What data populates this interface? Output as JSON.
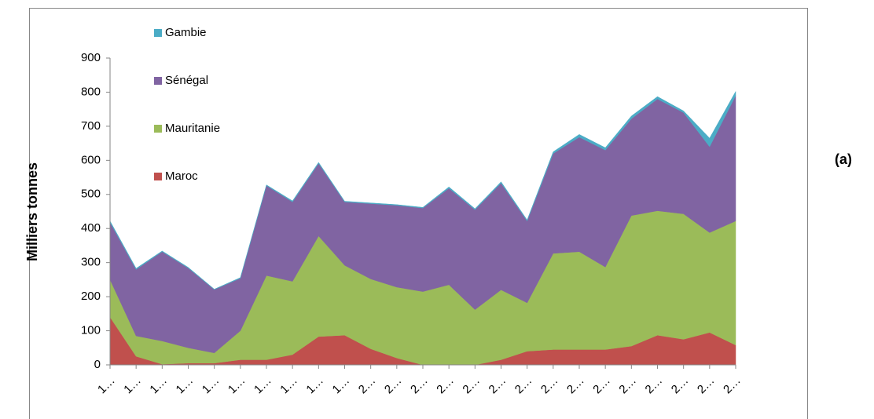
{
  "chart_data": {
    "type": "stacked-area",
    "y_label": "Milliers tonnes",
    "annotation": "(a)",
    "categories": [
      "1…",
      "1…",
      "1…",
      "1…",
      "1…",
      "1…",
      "1…",
      "1…",
      "1…",
      "1…",
      "2…",
      "2…",
      "2…",
      "2…",
      "2…",
      "2…",
      "2…",
      "2…",
      "2…",
      "2…",
      "2…",
      "2…",
      "2…",
      "2…",
      "2…"
    ],
    "series": [
      {
        "name": "Maroc",
        "color": "#c0504d",
        "values": [
          140,
          25,
          2,
          5,
          5,
          15,
          15,
          30,
          83,
          87,
          47,
          20,
          0,
          0,
          0,
          15,
          40,
          45,
          45,
          45,
          55,
          87,
          75,
          95,
          58
        ]
      },
      {
        "name": "Mauritanie",
        "color": "#9bbb59",
        "values": [
          110,
          60,
          68,
          45,
          30,
          85,
          247,
          215,
          295,
          205,
          205,
          208,
          215,
          235,
          162,
          205,
          142,
          282,
          287,
          242,
          383,
          365,
          368,
          293,
          364
        ]
      },
      {
        "name": "Sénégal",
        "color": "#8064a2",
        "values": [
          168,
          195,
          262,
          234,
          186,
          154,
          264,
          233,
          213,
          186,
          221,
          240,
          245,
          283,
          293,
          313,
          240,
          293,
          336,
          343,
          284,
          328,
          297,
          252,
          368
        ]
      },
      {
        "name": "Gambie",
        "color": "#4bacc6",
        "values": [
          4,
          3,
          2,
          2,
          1,
          2,
          2,
          3,
          3,
          2,
          2,
          2,
          2,
          4,
          3,
          4,
          3,
          5,
          8,
          7,
          8,
          7,
          5,
          25,
          12
        ]
      }
    ],
    "ylim": [
      0,
      900
    ],
    "yticks": [
      0,
      100,
      200,
      300,
      400,
      500,
      600,
      700,
      800,
      900
    ],
    "grid": false,
    "legend": "top-left"
  }
}
